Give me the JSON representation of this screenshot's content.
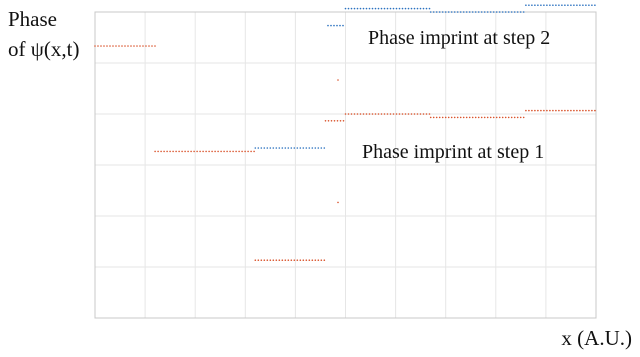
{
  "chart_data": {
    "type": "scatter",
    "title": "",
    "ylabel_line1": "Phase",
    "ylabel_line2": "of ψ(x,t)",
    "xlabel": "x (A.U.)",
    "grid": true,
    "xlim": [
      0,
      10
    ],
    "ylim": [
      0,
      4.5
    ],
    "annotations": [
      {
        "text": "Phase imprint at step 2"
      },
      {
        "text": "Phase imprint at step 1"
      }
    ],
    "series": [
      {
        "color": "#d9532b",
        "segments": [
          {
            "x": [
              0.0,
              1.2
            ],
            "y": 4.0
          },
          {
            "x": [
              1.2,
              3.2
            ],
            "y": 2.45
          },
          {
            "x": [
              3.2,
              4.6
            ],
            "y": 0.85
          },
          {
            "x": [
              4.6,
              5.0
            ],
            "y": 2.9
          },
          {
            "x": [
              5.0,
              6.7
            ],
            "y": 3.0
          },
          {
            "x": [
              6.7,
              8.6
            ],
            "y": 2.95
          },
          {
            "x": [
              8.6,
              10.0
            ],
            "y": 3.05
          }
        ],
        "stray_points": [
          {
            "x": 4.85,
            "y": 1.7
          },
          {
            "x": 4.85,
            "y": 3.5
          }
        ]
      },
      {
        "color": "#2b72c0",
        "segments": [
          {
            "x": [
              3.2,
              4.6
            ],
            "y": 2.5
          },
          {
            "x": [
              4.65,
              4.95
            ],
            "y": 4.3
          },
          {
            "x": [
              5.0,
              6.7
            ],
            "y": 4.55
          },
          {
            "x": [
              6.7,
              8.6
            ],
            "y": 4.5
          },
          {
            "x": [
              8.6,
              10.0
            ],
            "y": 4.6
          }
        ],
        "stray_points": []
      }
    ]
  }
}
